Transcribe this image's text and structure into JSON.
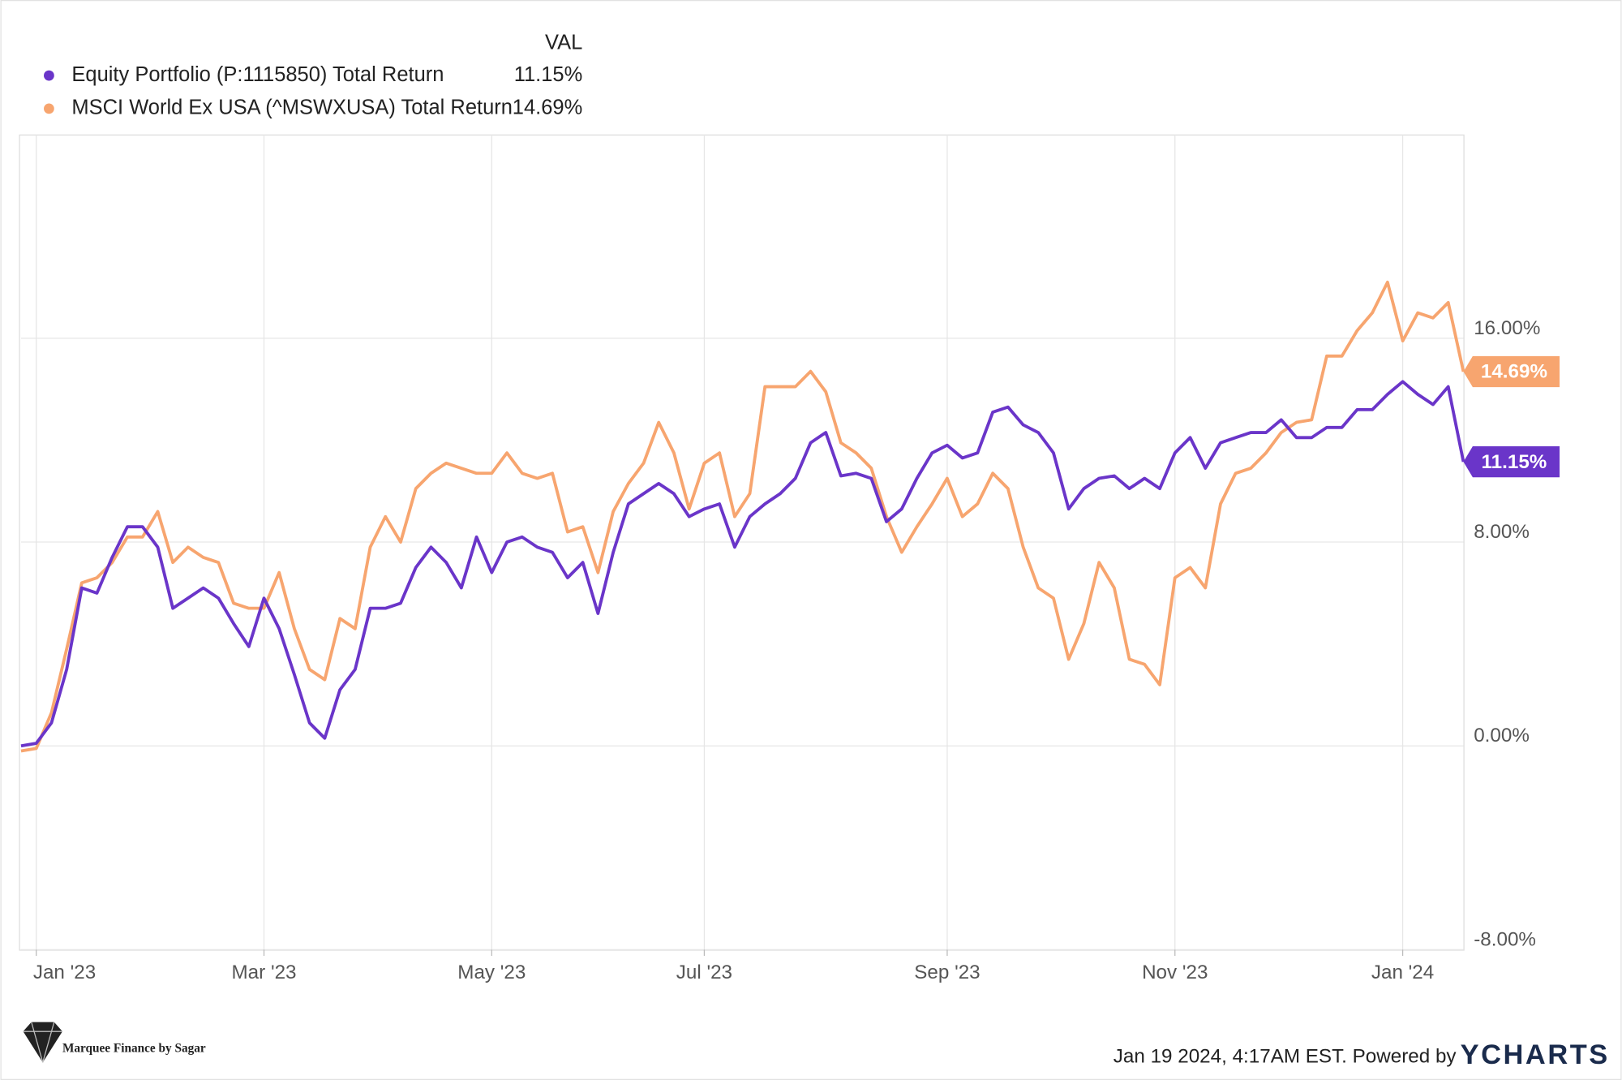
{
  "chart_data": {
    "type": "line",
    "legend_header": "VAL",
    "categories": [
      null,
      "Jan '23",
      null,
      null,
      null,
      null,
      null,
      null,
      null,
      null,
      null,
      null,
      null,
      null,
      null,
      null,
      "Mar '23",
      null,
      null,
      null,
      null,
      null,
      null,
      null,
      null,
      null,
      null,
      null,
      null,
      null,
      null,
      "May '23",
      null,
      null,
      null,
      null,
      null,
      null,
      null,
      null,
      null,
      null,
      null,
      null,
      null,
      "Jul '23",
      null,
      null,
      null,
      null,
      null,
      null,
      null,
      null,
      null,
      null,
      null,
      null,
      null,
      null,
      null,
      "Sep '23",
      null,
      null,
      null,
      null,
      null,
      null,
      null,
      null,
      null,
      null,
      null,
      null,
      null,
      null,
      "Nov '23",
      null,
      null,
      null,
      null,
      null,
      null,
      null,
      null,
      null,
      null,
      null,
      null,
      null,
      null,
      "Jan '24",
      null,
      null,
      null,
      null
    ],
    "series": [
      {
        "name": "Equity Portfolio (P:1115850) Total Return",
        "color": "#6a35c9",
        "last_value_label": "11.15%",
        "values": [
          0,
          0.1,
          0.9,
          3.0,
          6.2,
          6.0,
          7.4,
          8.6,
          8.6,
          7.8,
          5.4,
          5.8,
          6.2,
          5.8,
          4.8,
          3.9,
          5.8,
          4.6,
          2.8,
          0.9,
          0.3,
          2.2,
          3.0,
          5.4,
          5.4,
          5.6,
          7.0,
          7.8,
          7.2,
          6.2,
          8.2,
          6.8,
          8.0,
          8.2,
          7.8,
          7.6,
          6.6,
          7.2,
          5.2,
          7.6,
          9.5,
          9.9,
          10.3,
          9.9,
          9.0,
          9.3,
          9.5,
          7.8,
          9.0,
          9.5,
          9.9,
          10.5,
          11.9,
          12.3,
          10.6,
          10.7,
          10.5,
          8.8,
          9.3,
          10.5,
          11.5,
          11.8,
          11.3,
          11.5,
          13.1,
          13.3,
          12.6,
          12.3,
          11.5,
          9.3,
          10.1,
          10.5,
          10.6,
          10.1,
          10.5,
          10.1,
          11.5,
          12.1,
          10.9,
          11.9,
          12.1,
          12.3,
          12.3,
          12.8,
          12.1,
          12.1,
          12.5,
          12.5,
          13.2,
          13.2,
          13.8,
          14.3,
          13.8,
          13.4,
          14.1,
          11.15
        ]
      },
      {
        "name": "MSCI World Ex USA (^MSWXUSA) Total Return",
        "color": "#f7a56f",
        "last_value_label": "14.69%",
        "values": [
          -0.2,
          -0.1,
          1.3,
          3.8,
          6.4,
          6.6,
          7.2,
          8.2,
          8.2,
          9.2,
          7.2,
          7.8,
          7.4,
          7.2,
          5.6,
          5.4,
          5.4,
          6.8,
          4.6,
          3.0,
          2.6,
          5.0,
          4.6,
          7.8,
          9.0,
          8.0,
          10.1,
          10.7,
          11.1,
          10.9,
          10.7,
          10.7,
          11.5,
          10.7,
          10.5,
          10.7,
          8.4,
          8.6,
          6.8,
          9.2,
          10.3,
          11.1,
          12.7,
          11.5,
          9.3,
          11.1,
          11.5,
          9.0,
          9.9,
          14.1,
          14.1,
          14.1,
          14.7,
          13.9,
          11.9,
          11.5,
          10.9,
          9.0,
          7.6,
          8.6,
          9.5,
          10.5,
          9.0,
          9.5,
          10.7,
          10.1,
          7.8,
          6.2,
          5.8,
          3.4,
          4.8,
          7.2,
          6.2,
          3.4,
          3.2,
          2.4,
          6.6,
          7.0,
          6.2,
          9.5,
          10.7,
          10.9,
          11.5,
          12.3,
          12.7,
          12.8,
          15.3,
          15.3,
          16.3,
          17.0,
          18.2,
          15.9,
          17.0,
          16.8,
          17.4,
          14.69
        ]
      }
    ],
    "ylim": [
      -8,
      24
    ],
    "yticks": [
      {
        "value": -8,
        "label": "-8.00%"
      },
      {
        "value": 0,
        "label": "0.00%"
      },
      {
        "value": 8,
        "label": "8.00%"
      },
      {
        "value": 16,
        "label": "16.00%"
      }
    ],
    "grid": true,
    "footer": "Jan 19 2024, 4:17AM EST. Powered by",
    "brand": "YCHARTS",
    "watermark": "Marquee Finance by Sagar"
  }
}
